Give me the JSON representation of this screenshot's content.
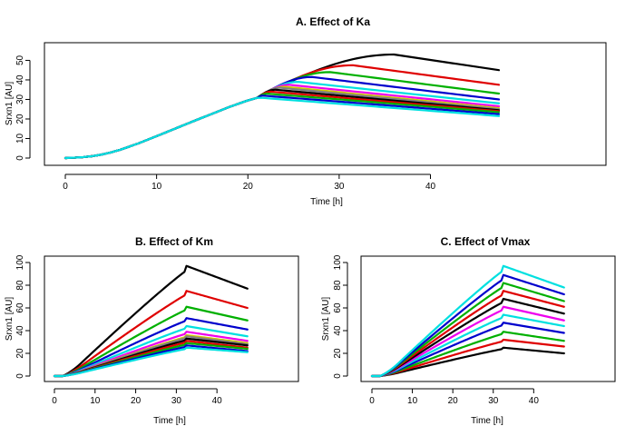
{
  "chart_data": [
    {
      "id": "A",
      "type": "line",
      "title": "A. Effect of Ka",
      "xlabel": "Time [h]",
      "ylabel": "Srxn1 [AU]",
      "xlim": [
        0,
        48
      ],
      "ylim": [
        0,
        53
      ],
      "xticks": [
        0,
        10,
        20,
        30,
        40
      ],
      "yticks": [
        0,
        10,
        20,
        30,
        40,
        50
      ],
      "grid": false,
      "legend": "none",
      "model": {
        "kind": "saturating",
        "common_rise": [
          [
            0,
            0
          ],
          [
            1,
            0.2
          ],
          [
            2,
            0.5
          ],
          [
            3,
            1
          ],
          [
            4,
            1.8
          ],
          [
            5,
            2.9
          ],
          [
            6,
            4.2
          ],
          [
            8,
            7.5
          ],
          [
            10,
            11.2
          ],
          [
            12,
            15
          ],
          [
            14,
            18.8
          ],
          [
            16,
            22.5
          ],
          [
            18,
            26.2
          ],
          [
            20,
            29.5
          ],
          [
            21,
            30.8
          ]
        ]
      },
      "series": [
        {
          "color": "#000000",
          "peak_time": 36,
          "peak_value": 53,
          "end_value": 45
        },
        {
          "color": "#DF0000",
          "peak_time": 31.5,
          "peak_value": 47.5,
          "end_value": 37.5
        },
        {
          "color": "#00B000",
          "peak_time": 29,
          "peak_value": 44,
          "end_value": 33
        },
        {
          "color": "#0000CC",
          "peak_time": 27,
          "peak_value": 41.5,
          "end_value": 30
        },
        {
          "color": "#00E0E0",
          "peak_time": 25.5,
          "peak_value": 39,
          "end_value": 28
        },
        {
          "color": "#EE00EE",
          "peak_time": 24.5,
          "peak_value": 37.5,
          "end_value": 26.5
        },
        {
          "color": "#D0C800",
          "peak_time": 24,
          "peak_value": 36.5,
          "end_value": 25.5
        },
        {
          "color": "#808080",
          "peak_time": 23.5,
          "peak_value": 36,
          "end_value": 25
        },
        {
          "color": "#000000",
          "peak_time": 23,
          "peak_value": 35,
          "end_value": 24.5
        },
        {
          "color": "#DF0000",
          "peak_time": 22.5,
          "peak_value": 34,
          "end_value": 24
        },
        {
          "color": "#00B000",
          "peak_time": 22,
          "peak_value": 33,
          "end_value": 23.5
        },
        {
          "color": "#0000CC",
          "peak_time": 21.5,
          "peak_value": 32,
          "end_value": 22.5
        },
        {
          "color": "#00E0E0",
          "peak_time": 21,
          "peak_value": 31,
          "end_value": 21.5
        }
      ]
    },
    {
      "id": "B",
      "type": "line",
      "title": "B. Effect of Km",
      "xlabel": "Time [h]",
      "ylabel": "Srxn1 [AU]",
      "xlim": [
        0,
        48
      ],
      "ylim": [
        0,
        100
      ],
      "xticks": [
        0,
        10,
        20,
        30,
        40
      ],
      "yticks": [
        0,
        20,
        40,
        60,
        80,
        100
      ],
      "grid": false,
      "legend": "none",
      "model": {
        "kind": "scaled",
        "peak_time": 32.5
      },
      "series": [
        {
          "color": "#000000",
          "peak_value": 97,
          "end_value": 77
        },
        {
          "color": "#DF0000",
          "peak_value": 75,
          "end_value": 60
        },
        {
          "color": "#00B000",
          "peak_value": 61,
          "end_value": 49
        },
        {
          "color": "#0000CC",
          "peak_value": 51,
          "end_value": 41
        },
        {
          "color": "#00E0E0",
          "peak_value": 44,
          "end_value": 35
        },
        {
          "color": "#EE00EE",
          "peak_value": 39,
          "end_value": 31
        },
        {
          "color": "#D0C800",
          "peak_value": 36,
          "end_value": 29
        },
        {
          "color": "#808080",
          "peak_value": 35,
          "end_value": 28
        },
        {
          "color": "#000000",
          "peak_value": 33,
          "end_value": 27
        },
        {
          "color": "#DF0000",
          "peak_value": 31,
          "end_value": 25
        },
        {
          "color": "#00B000",
          "peak_value": 29,
          "end_value": 24
        },
        {
          "color": "#0000CC",
          "peak_value": 27,
          "end_value": 22
        },
        {
          "color": "#00E0E0",
          "peak_value": 25,
          "end_value": 21
        }
      ]
    },
    {
      "id": "C",
      "type": "line",
      "title": "C. Effect of Vmax",
      "xlabel": "Time [h]",
      "ylabel": "Srxn1 [AU]",
      "xlim": [
        0,
        48
      ],
      "ylim": [
        0,
        100
      ],
      "xticks": [
        0,
        10,
        20,
        30,
        40
      ],
      "yticks": [
        0,
        20,
        40,
        60,
        80,
        100
      ],
      "grid": false,
      "legend": "none",
      "model": {
        "kind": "scaled",
        "peak_time": 32.5
      },
      "series": [
        {
          "color": "#000000",
          "peak_value": 25,
          "end_value": 20
        },
        {
          "color": "#DF0000",
          "peak_value": 32,
          "end_value": 26
        },
        {
          "color": "#00B000",
          "peak_value": 39,
          "end_value": 31
        },
        {
          "color": "#0000CC",
          "peak_value": 47,
          "end_value": 38
        },
        {
          "color": "#00E0E0",
          "peak_value": 54,
          "end_value": 44
        },
        {
          "color": "#EE00EE",
          "peak_value": 61,
          "end_value": 49
        },
        {
          "color": "#000000",
          "peak_value": 68,
          "end_value": 55
        },
        {
          "color": "#DF0000",
          "peak_value": 75,
          "end_value": 61
        },
        {
          "color": "#00B000",
          "peak_value": 82,
          "end_value": 66
        },
        {
          "color": "#0000CC",
          "peak_value": 89,
          "end_value": 72
        },
        {
          "color": "#00E0E0",
          "peak_value": 97,
          "end_value": 78
        }
      ]
    }
  ]
}
